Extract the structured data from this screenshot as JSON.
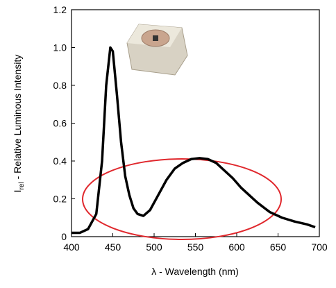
{
  "chart_data": {
    "type": "line",
    "xlabel": "λ - Wavelength (nm)",
    "ylabel": {
      "main": "I",
      "sub": "rel",
      "rest": " - Relative Luminous Intensity"
    },
    "x": [
      400,
      410,
      420,
      430,
      437,
      442,
      447,
      450,
      455,
      460,
      465,
      470,
      475,
      480,
      487,
      495,
      505,
      515,
      525,
      535,
      545,
      555,
      565,
      575,
      585,
      595,
      605,
      615,
      625,
      640,
      655,
      670,
      685,
      695
    ],
    "series": [
      {
        "color": "#000000",
        "values": [
          0.02,
          0.02,
          0.04,
          0.12,
          0.4,
          0.8,
          1.0,
          0.98,
          0.75,
          0.5,
          0.32,
          0.22,
          0.15,
          0.12,
          0.11,
          0.14,
          0.22,
          0.3,
          0.36,
          0.39,
          0.41,
          0.415,
          0.41,
          0.39,
          0.35,
          0.31,
          0.26,
          0.22,
          0.18,
          0.13,
          0.1,
          0.08,
          0.065,
          0.05
        ]
      }
    ],
    "xlim": [
      400,
      700
    ],
    "xticks": [
      400,
      450,
      500,
      550,
      600,
      650,
      700
    ],
    "ylim": [
      0,
      1.2
    ],
    "yticks": [
      0,
      0.2,
      0.4,
      0.6,
      0.8,
      {
        "value": 1.0,
        "label": "1.0"
      },
      1.2
    ],
    "grid": false
  }
}
